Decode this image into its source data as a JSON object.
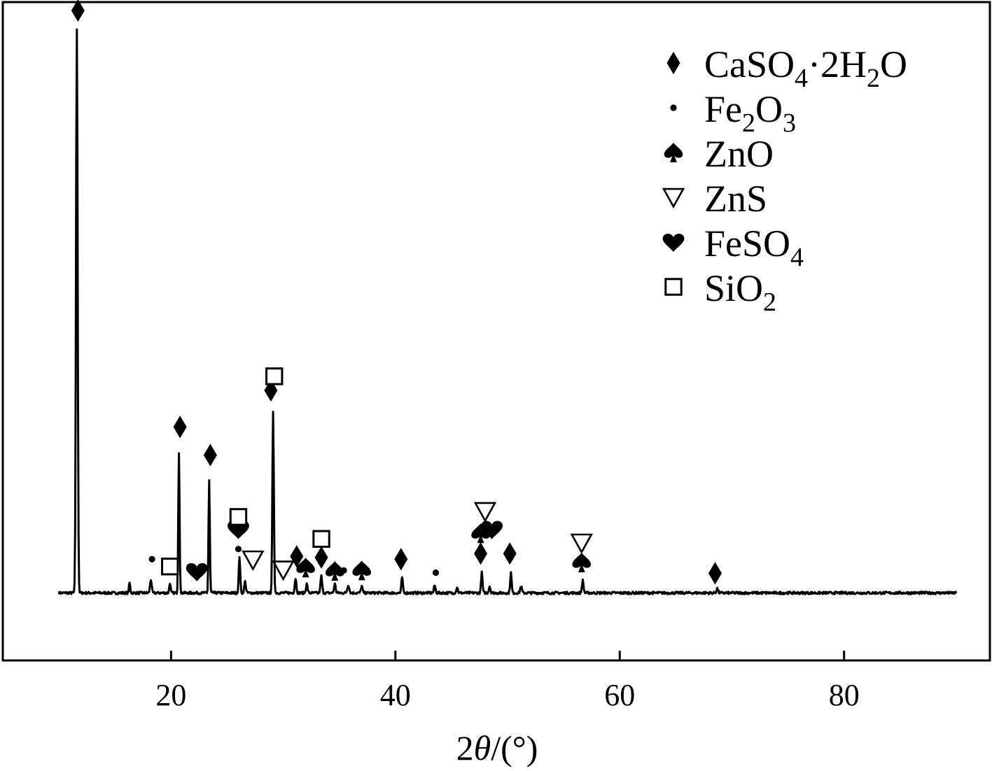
{
  "chart_data": {
    "type": "line",
    "title": "",
    "xlabel": "2θ/(°)",
    "xlabel_parts": {
      "pre": "2",
      "theta": "θ",
      "post": "/(°)"
    },
    "ylabel": "",
    "xlim": [
      5,
      93
    ],
    "ylim": [
      -12,
      105
    ],
    "grid": false,
    "x_ticks": [
      20,
      40,
      60,
      80
    ],
    "x_tick_labels": [
      "20",
      "40",
      "60",
      "80"
    ],
    "legend": {
      "placement": "top-right",
      "entries": [
        {
          "marker": "diamond",
          "parts": [
            {
              "t": "CaSO"
            },
            {
              "t": "4",
              "sub": true
            },
            {
              "t": "·2H"
            },
            {
              "t": "2",
              "sub": true
            },
            {
              "t": "O"
            }
          ]
        },
        {
          "marker": "dot",
          "parts": [
            {
              "t": "Fe"
            },
            {
              "t": "2",
              "sub": true
            },
            {
              "t": "O"
            },
            {
              "t": "3",
              "sub": true
            }
          ]
        },
        {
          "marker": "spade",
          "parts": [
            {
              "t": "ZnO"
            }
          ]
        },
        {
          "marker": "triangle-down",
          "parts": [
            {
              "t": "ZnS"
            }
          ]
        },
        {
          "marker": "heart",
          "parts": [
            {
              "t": "FeSO"
            },
            {
              "t": "4",
              "sub": true
            }
          ]
        },
        {
          "marker": "square",
          "parts": [
            {
              "t": "SiO"
            },
            {
              "t": "2",
              "sub": true
            }
          ]
        }
      ]
    },
    "baseline": 0,
    "peaks": [
      {
        "x": 11.6,
        "h": 100,
        "w": 0.1
      },
      {
        "x": 16.3,
        "h": 1.8,
        "w": 0.08
      },
      {
        "x": 18.2,
        "h": 2.4,
        "w": 0.1
      },
      {
        "x": 19.9,
        "h": 1.8,
        "w": 0.08
      },
      {
        "x": 20.7,
        "h": 25,
        "w": 0.08
      },
      {
        "x": 23.4,
        "h": 20,
        "w": 0.08
      },
      {
        "x": 26.1,
        "h": 6.5,
        "w": 0.09
      },
      {
        "x": 26.6,
        "h": 2.0,
        "w": 0.1
      },
      {
        "x": 29.1,
        "h": 32,
        "w": 0.09
      },
      {
        "x": 31.1,
        "h": 2.6,
        "w": 0.1
      },
      {
        "x": 32.1,
        "h": 1.6,
        "w": 0.1
      },
      {
        "x": 33.4,
        "h": 3.0,
        "w": 0.1
      },
      {
        "x": 34.6,
        "h": 1.6,
        "w": 0.1
      },
      {
        "x": 35.8,
        "h": 1.4,
        "w": 0.12
      },
      {
        "x": 37.0,
        "h": 1.2,
        "w": 0.1
      },
      {
        "x": 40.6,
        "h": 2.8,
        "w": 0.09
      },
      {
        "x": 43.5,
        "h": 1.3,
        "w": 0.1
      },
      {
        "x": 45.5,
        "h": 1.0,
        "w": 0.1
      },
      {
        "x": 47.7,
        "h": 3.6,
        "w": 0.09
      },
      {
        "x": 48.4,
        "h": 1.2,
        "w": 0.1
      },
      {
        "x": 50.3,
        "h": 3.6,
        "w": 0.09
      },
      {
        "x": 51.2,
        "h": 1.2,
        "w": 0.1
      },
      {
        "x": 56.7,
        "h": 2.2,
        "w": 0.1
      },
      {
        "x": 68.7,
        "h": 0.8,
        "w": 0.1
      }
    ],
    "annotations": [
      {
        "marker": "diamond",
        "x": 11.7,
        "y": 103.5
      },
      {
        "marker": "diamond",
        "x": 20.8,
        "y": 29.5
      },
      {
        "marker": "diamond",
        "x": 23.5,
        "y": 24.5
      },
      {
        "marker": "diamond",
        "x": 28.9,
        "y": 36
      },
      {
        "marker": "diamond",
        "x": 31.2,
        "y": 6.5
      },
      {
        "marker": "diamond",
        "x": 33.4,
        "y": 6.3
      },
      {
        "marker": "diamond",
        "x": 40.5,
        "y": 6.0
      },
      {
        "marker": "diamond",
        "x": 47.6,
        "y": 7.0
      },
      {
        "marker": "diamond",
        "x": 50.2,
        "y": 7.0
      },
      {
        "marker": "diamond",
        "x": 68.5,
        "y": 3.5
      },
      {
        "marker": "dot",
        "x": 18.3,
        "y": 6.0
      },
      {
        "marker": "dot",
        "x": 26.0,
        "y": 7.8
      },
      {
        "marker": "dot",
        "x": 35.4,
        "y": 4.0
      },
      {
        "marker": "dot",
        "x": 43.6,
        "y": 3.6
      },
      {
        "marker": "spade",
        "x": 32.0,
        "y": 4.5
      },
      {
        "marker": "spade",
        "x": 34.6,
        "y": 3.9
      },
      {
        "marker": "spade",
        "x": 37.0,
        "y": 4.0
      },
      {
        "marker": "spade",
        "x": 47.6,
        "y": 10.6
      },
      {
        "marker": "spade",
        "x": 56.6,
        "y": 5.4
      },
      {
        "marker": "triangle-down",
        "x": 27.3,
        "y": 5.9
      },
      {
        "marker": "triangle-down",
        "x": 30.0,
        "y": 4.1
      },
      {
        "marker": "triangle-down",
        "x": 48.0,
        "y": 14.5
      },
      {
        "marker": "triangle-down",
        "x": 56.6,
        "y": 8.9
      },
      {
        "marker": "heart",
        "x": 22.3,
        "y": 3.8
      },
      {
        "marker": "heart",
        "x": 26.0,
        "y": 11.3
      },
      {
        "marker": "heart",
        "x": 48.6,
        "y": 11.3
      },
      {
        "marker": "square",
        "x": 19.9,
        "y": 4.7
      },
      {
        "marker": "square",
        "x": 26.0,
        "y": 13.5
      },
      {
        "marker": "square",
        "x": 29.2,
        "y": 38.5
      },
      {
        "marker": "square",
        "x": 33.4,
        "y": 9.6
      }
    ]
  }
}
